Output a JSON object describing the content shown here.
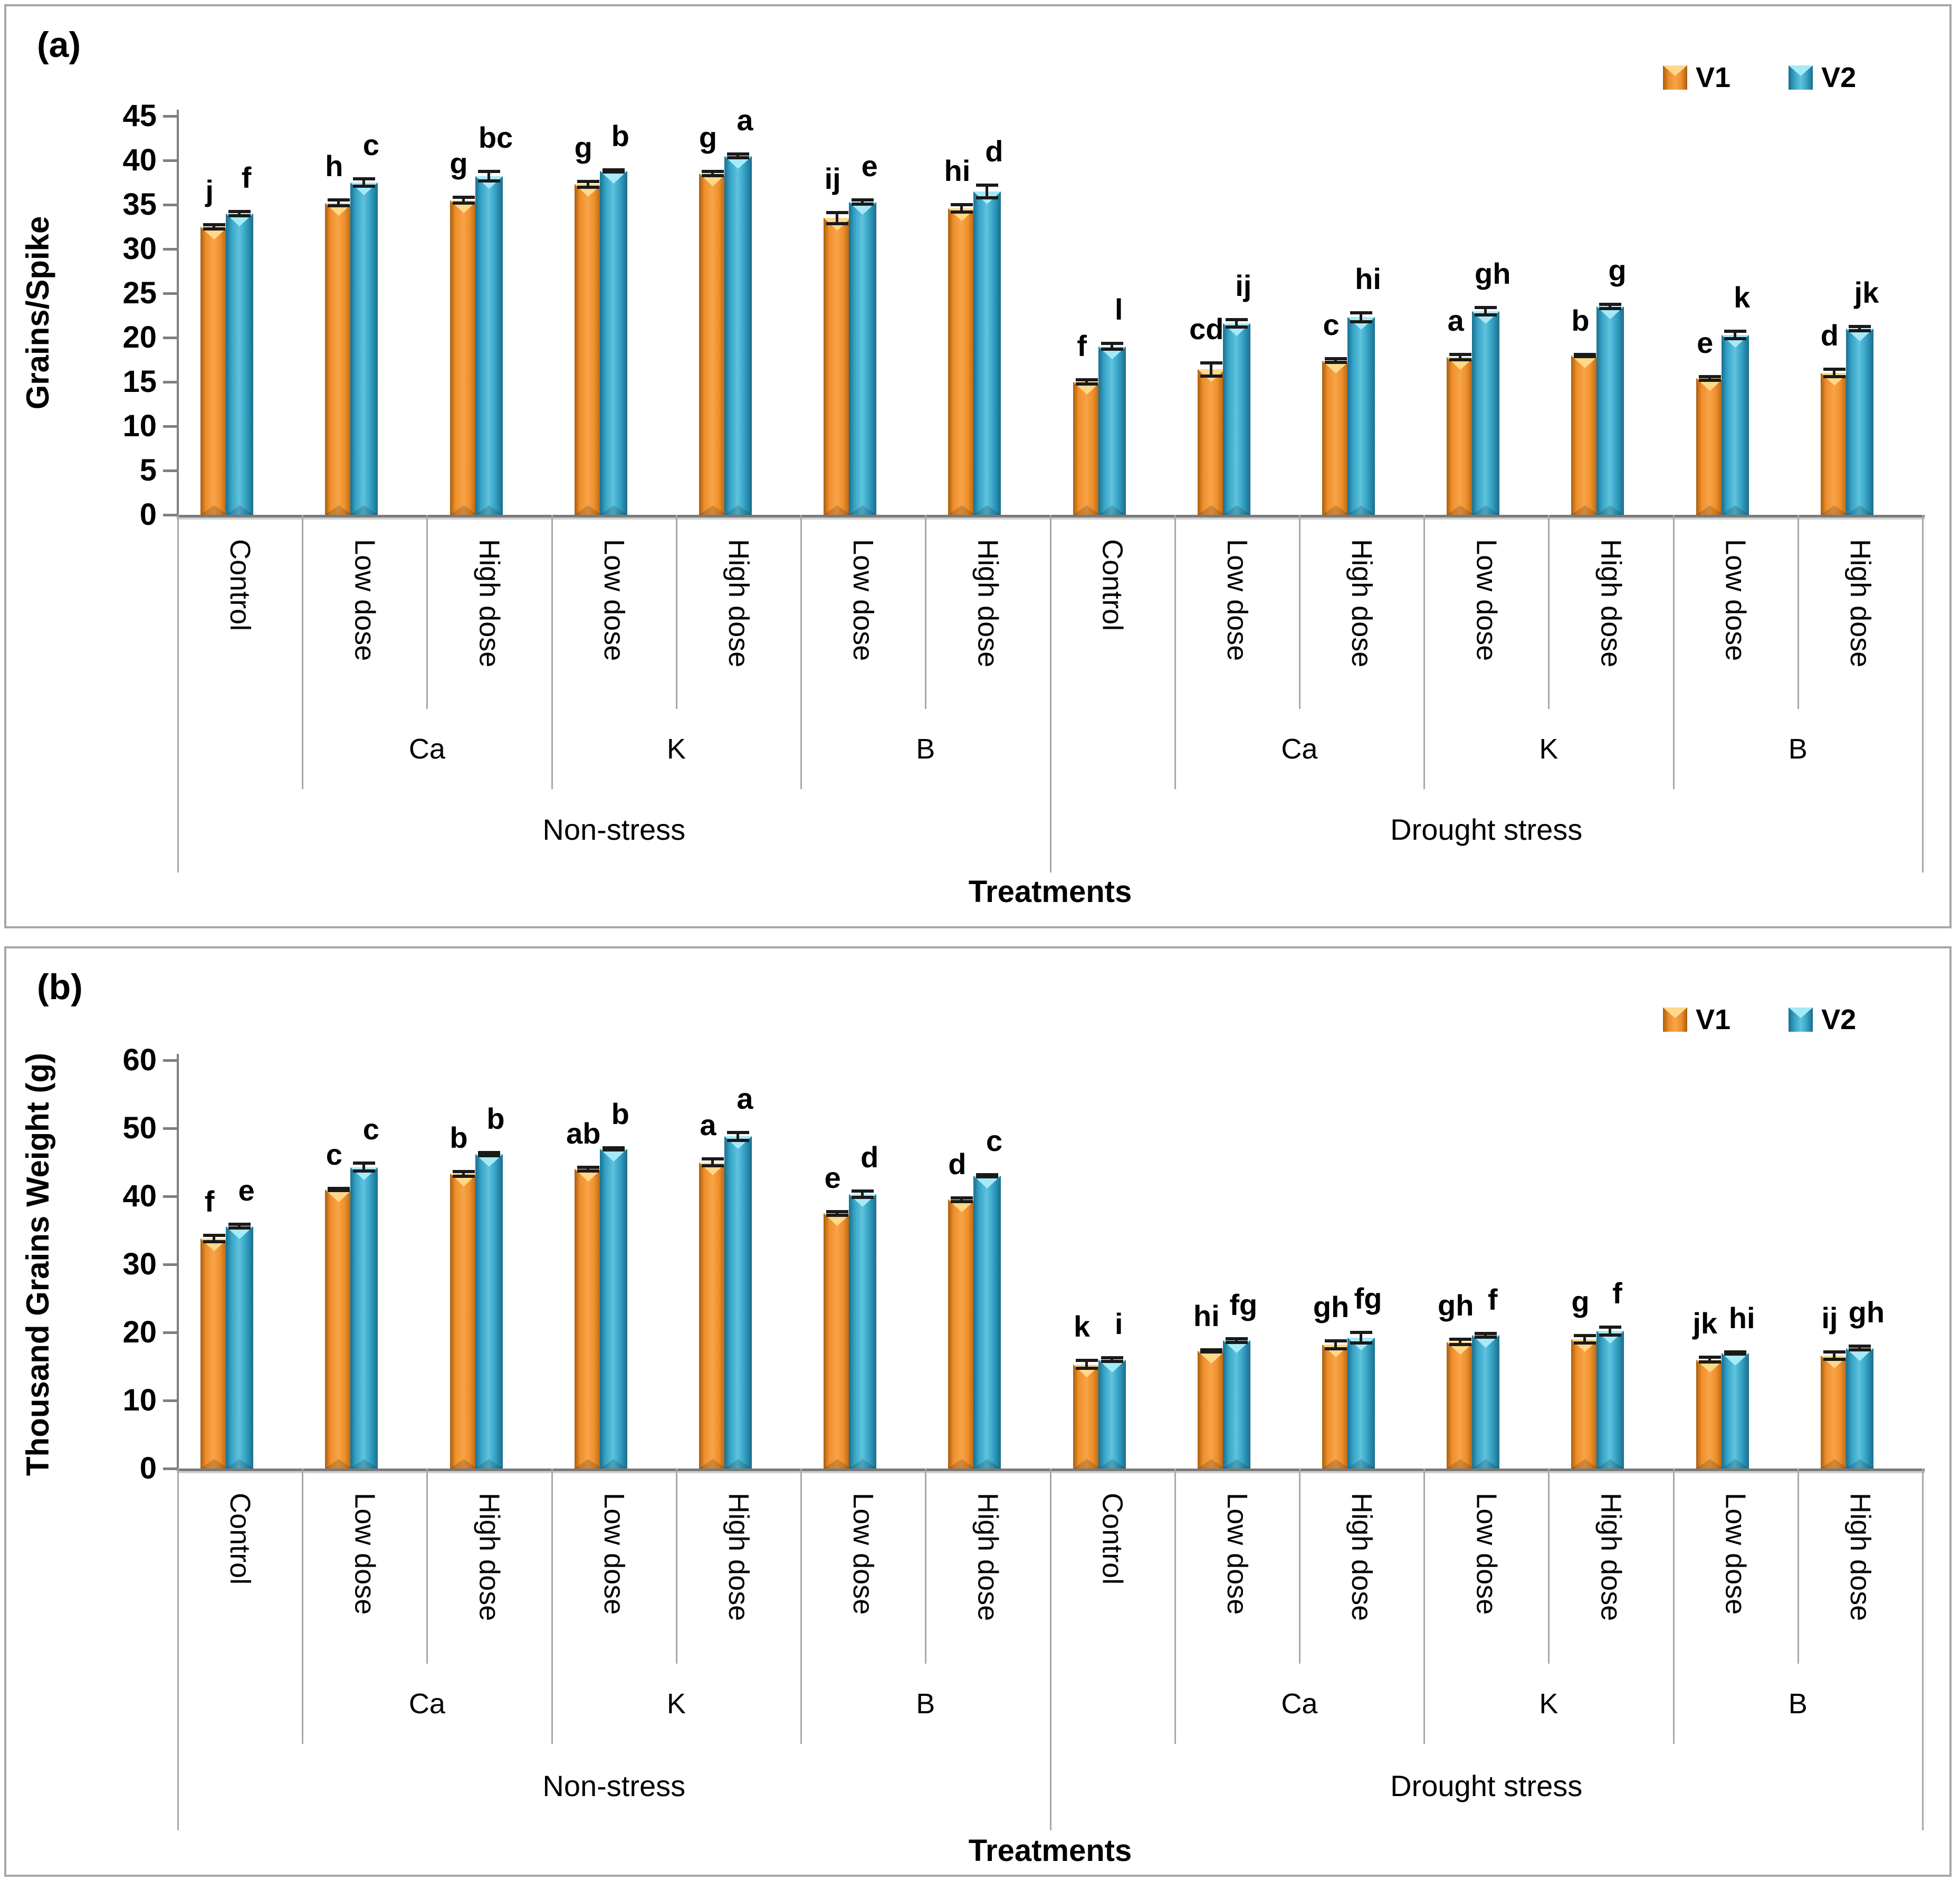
{
  "figure": {
    "legend": {
      "v1_label": "V1",
      "v2_label": "V2"
    },
    "colors": {
      "v1": "#EF8F2B",
      "v1_mid": "#F7A449",
      "v1_dark": "#A85E10",
      "v1_light": "#FFD88A",
      "v2": "#35A3C6",
      "v2_mid": "#5FC3DD",
      "v2_dark": "#1A6E8E",
      "v2_light": "#A6EAF8",
      "error_bar": "#1A1A1A",
      "axis": "#7F7F7F",
      "separator": "#A8A8A8",
      "frame": "#A6A6A6",
      "text": "#000000"
    }
  },
  "chart_data": [
    {
      "panel_label": "(a)",
      "type": "bar",
      "title": "",
      "ylabel": "Grains/Spike",
      "xlabel": "Treatments",
      "ylim": [
        0,
        45
      ],
      "ytick_step": 5,
      "yticks": [
        45,
        40,
        35,
        30,
        25,
        20,
        15,
        10,
        5,
        0
      ],
      "grid": false,
      "legend_position": "top-right",
      "categories": [
        "Control",
        "Low dose",
        "High dose",
        "Low dose",
        "High dose",
        "Low dose",
        "High dose",
        "Control",
        "Low dose",
        "High dose",
        "Low dose",
        "High dose",
        "Low dose",
        "High dose"
      ],
      "nutrient_groups": [
        {
          "label": "Ca",
          "start": 1,
          "end": 3
        },
        {
          "label": "K",
          "start": 3,
          "end": 5
        },
        {
          "label": "B",
          "start": 5,
          "end": 7
        },
        {
          "label": "Ca",
          "start": 8,
          "end": 10
        },
        {
          "label": "K",
          "start": 10,
          "end": 12
        },
        {
          "label": "B",
          "start": 12,
          "end": 14
        }
      ],
      "stress_groups": [
        {
          "label": "Non-stress",
          "start": 0,
          "end": 7
        },
        {
          "label": "Drought stress",
          "start": 7,
          "end": 14
        }
      ],
      "series": [
        {
          "name": "V1",
          "values": [
            32.5,
            35.2,
            35.5,
            37.3,
            38.5,
            33.5,
            34.6,
            15.0,
            16.4,
            17.4,
            17.8,
            18.0,
            15.4,
            16.0
          ],
          "errors": [
            0.4,
            0.5,
            0.5,
            0.5,
            0.4,
            0.8,
            0.6,
            0.4,
            0.9,
            0.4,
            0.5,
            0.3,
            0.4,
            0.6
          ],
          "letters": [
            "j",
            "h",
            "g",
            "g",
            "g",
            "ij",
            "hi",
            "f",
            "cd",
            "c",
            "a",
            "b",
            "e",
            "d"
          ]
        },
        {
          "name": "V2",
          "values": [
            34.0,
            37.5,
            38.2,
            38.8,
            40.5,
            35.3,
            36.5,
            19.0,
            21.6,
            22.3,
            23.0,
            23.5,
            20.3,
            21.0
          ],
          "errors": [
            0.4,
            0.6,
            0.7,
            0.3,
            0.4,
            0.4,
            0.9,
            0.5,
            0.6,
            0.7,
            0.6,
            0.4,
            0.6,
            0.4
          ],
          "letters": [
            "f",
            "c",
            "bc",
            "b",
            "a",
            "e",
            "d",
            "l",
            "ij",
            "hi",
            "gh",
            "g",
            "k",
            "jk"
          ]
        }
      ]
    },
    {
      "panel_label": "(b)",
      "type": "bar",
      "title": "",
      "ylabel": "Thousand Grains Weight (g)",
      "xlabel": "Treatments",
      "ylim": [
        0,
        60
      ],
      "ytick_step": 10,
      "yticks": [
        60,
        50,
        40,
        30,
        20,
        10,
        0
      ],
      "grid": false,
      "legend_position": "top-right",
      "categories": [
        "Control",
        "Low dose",
        "High dose",
        "Low dose",
        "High dose",
        "Low dose",
        "High dose",
        "Control",
        "Low dose",
        "High dose",
        "Low dose",
        "High dose",
        "Low dose",
        "High dose"
      ],
      "nutrient_groups": [
        {
          "label": "Ca",
          "start": 1,
          "end": 3
        },
        {
          "label": "K",
          "start": 3,
          "end": 5
        },
        {
          "label": "B",
          "start": 5,
          "end": 7
        },
        {
          "label": "Ca",
          "start": 8,
          "end": 10
        },
        {
          "label": "K",
          "start": 10,
          "end": 12
        },
        {
          "label": "B",
          "start": 12,
          "end": 14
        }
      ],
      "stress_groups": [
        {
          "label": "Non-stress",
          "start": 0,
          "end": 7
        },
        {
          "label": "Drought stress",
          "start": 7,
          "end": 14
        }
      ],
      "series": [
        {
          "name": "V1",
          "values": [
            33.8,
            41.0,
            43.3,
            44.0,
            45.0,
            37.5,
            39.5,
            15.3,
            17.3,
            18.2,
            18.6,
            19.0,
            16.0,
            16.6
          ],
          "errors": [
            0.7,
            0.4,
            0.6,
            0.5,
            0.7,
            0.5,
            0.5,
            0.8,
            0.4,
            0.8,
            0.6,
            0.8,
            0.6,
            0.8
          ],
          "letters": [
            "f",
            "c",
            "b",
            "ab",
            "a",
            "e",
            "d",
            "k",
            "hi",
            "gh",
            "gh",
            "g",
            "jk",
            "ij"
          ]
        },
        {
          "name": "V2",
          "values": [
            35.6,
            44.3,
            46.2,
            47.0,
            48.8,
            40.3,
            43.0,
            16.0,
            18.8,
            19.2,
            19.6,
            20.2,
            17.0,
            17.7
          ],
          "errors": [
            0.5,
            0.8,
            0.5,
            0.4,
            0.8,
            0.7,
            0.4,
            0.5,
            0.5,
            1.0,
            0.5,
            0.8,
            0.4,
            0.5
          ],
          "letters": [
            "e",
            "c",
            "b",
            "b",
            "a",
            "d",
            "c",
            "i",
            "fg",
            "fg",
            "f",
            "f",
            "hi",
            "gh"
          ]
        }
      ]
    }
  ]
}
